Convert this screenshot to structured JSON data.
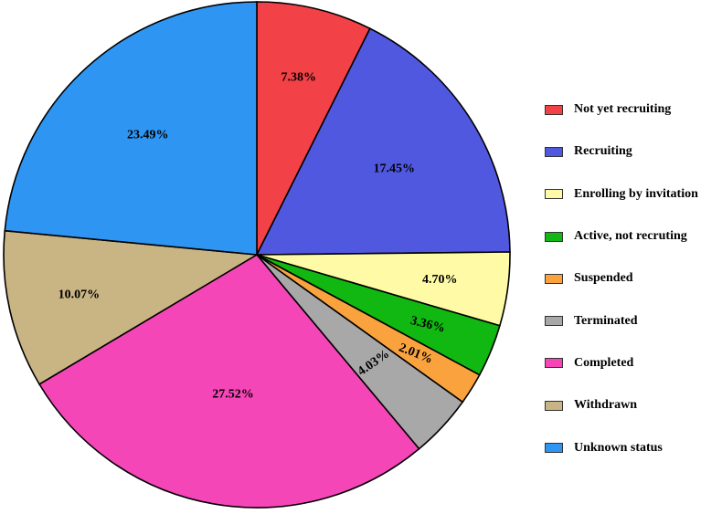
{
  "chart_data": {
    "type": "pie",
    "categories": [
      "Not yet recruiting",
      "Recruiting",
      "Enrolling by invitation",
      "Active, not recruting",
      "Suspended",
      "Terminated",
      "Completed",
      "Withdrawn",
      "Unknown status"
    ],
    "values": [
      7.38,
      17.45,
      4.7,
      3.36,
      2.01,
      4.03,
      27.52,
      10.07,
      23.49
    ],
    "labels": [
      "7.38%",
      "17.45%",
      "4.70%",
      "3.36%",
      "2.01%",
      "4.03%",
      "27.52%",
      "10.07%",
      "23.49%"
    ],
    "colors": [
      "#F24147",
      "#5158E0",
      "#FFFAA5",
      "#11B811",
      "#FAA33E",
      "#A8A8A8",
      "#F546B8",
      "#C9B484",
      "#2E95F2"
    ],
    "legend_position": "right",
    "start_angle": "12 o'clock",
    "direction": "clockwise"
  }
}
